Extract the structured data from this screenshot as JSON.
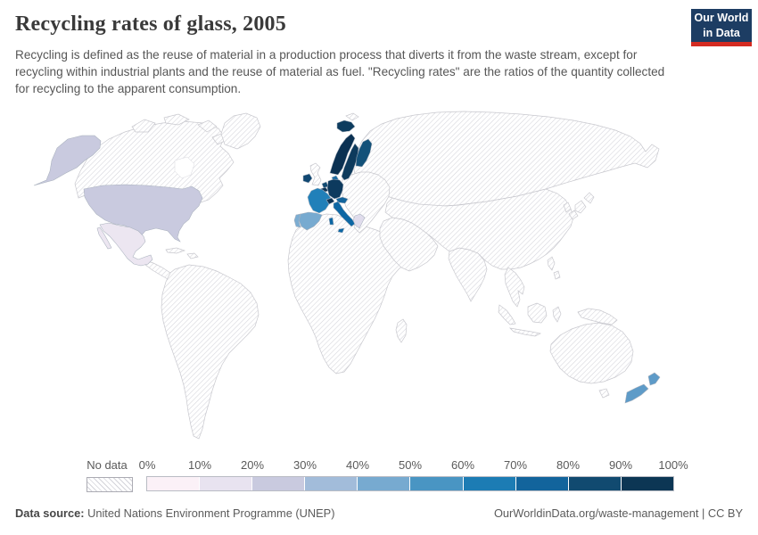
{
  "header": {
    "title": "Recycling rates of glass, 2005",
    "subtitle": "Recycling is defined as the reuse of material in a production process that diverts it from the waste stream, except for recycling within industrial plants and the reuse of material as fuel. \"Recycling rates\" are the ratios of the quantity collected for recycling to the apparent consumption.",
    "logo": {
      "line1": "Our World",
      "line2": "in Data",
      "bg_color": "#1d3d63",
      "accent_color": "#d42b21"
    }
  },
  "legend": {
    "no_data_label": "No data",
    "tick_labels": [
      "0%",
      "10%",
      "20%",
      "30%",
      "40%",
      "50%",
      "60%",
      "70%",
      "80%",
      "90%",
      "100%"
    ],
    "bin_colors": [
      "#fbf1f7",
      "#e8e3f0",
      "#c9cadf",
      "#a2bcda",
      "#77aad0",
      "#4995c3",
      "#1c7cb4",
      "#12649c",
      "#114a70",
      "#0c3654"
    ],
    "hatch_line_color": "#d4d4da"
  },
  "map": {
    "fills": {
      "usa": "#c9cadf",
      "mexico": "#ece6f1",
      "iceland": "#0d3c5f",
      "norway": "#0b3152",
      "sweden": "#0d3a5c",
      "finland": "#135179",
      "denmark": "#1a6ba3",
      "ireland": "#104872",
      "netherlands": "#114a72",
      "belgium": "#0b3355",
      "germany": "#0d3a5e",
      "france": "#2180b9",
      "switzerland": "#0b3355",
      "austria": "#13649c",
      "spain": "#77aad0",
      "portugal": "#7cadd2",
      "italy": "#0d67a4",
      "greece": "#e0dcec",
      "new_zealand": "#5e9bc8"
    }
  },
  "footer": {
    "datasource_label": "Data source:",
    "datasource_value": " United Nations Environment Programme (UNEP)",
    "credit": "OurWorldinData.org/waste-management | CC BY"
  },
  "chart_data": {
    "type": "heatmap",
    "subtype": "choropleth-world-map",
    "title": "Recycling rates of glass, 2005",
    "unit": "%",
    "legend_position": "bottom",
    "bin_edges_percent": [
      0,
      10,
      20,
      30,
      40,
      50,
      60,
      70,
      80,
      90,
      100
    ],
    "no_data_style": "diagonal-hatch",
    "entities": [
      {
        "entity": "United States",
        "value_range": "20-30%"
      },
      {
        "entity": "Mexico",
        "value_range": "10-20%"
      },
      {
        "entity": "Greece",
        "value_range": "10-20%"
      },
      {
        "entity": "Spain",
        "value_range": "40-50%"
      },
      {
        "entity": "Portugal",
        "value_range": "40-50%"
      },
      {
        "entity": "New Zealand",
        "value_range": "50-60%"
      },
      {
        "entity": "France",
        "value_range": "60-70%"
      },
      {
        "entity": "Italy",
        "value_range": "70-80%"
      },
      {
        "entity": "Austria",
        "value_range": "70-80%"
      },
      {
        "entity": "Denmark",
        "value_range": "70-80%"
      },
      {
        "entity": "Finland",
        "value_range": "80-90%"
      },
      {
        "entity": "Netherlands",
        "value_range": "80-90%"
      },
      {
        "entity": "Ireland",
        "value_range": "80-90%"
      },
      {
        "entity": "Iceland",
        "value_range": "90-100%"
      },
      {
        "entity": "Norway",
        "value_range": "90-100%"
      },
      {
        "entity": "Sweden",
        "value_range": "90-100%"
      },
      {
        "entity": "Germany",
        "value_range": "90-100%"
      },
      {
        "entity": "Belgium",
        "value_range": "90-100%"
      },
      {
        "entity": "Switzerland",
        "value_range": "90-100%"
      },
      {
        "entity": "United Kingdom",
        "value_range": "No data"
      },
      {
        "entity": "Rest of world",
        "value_range": "No data"
      }
    ]
  }
}
